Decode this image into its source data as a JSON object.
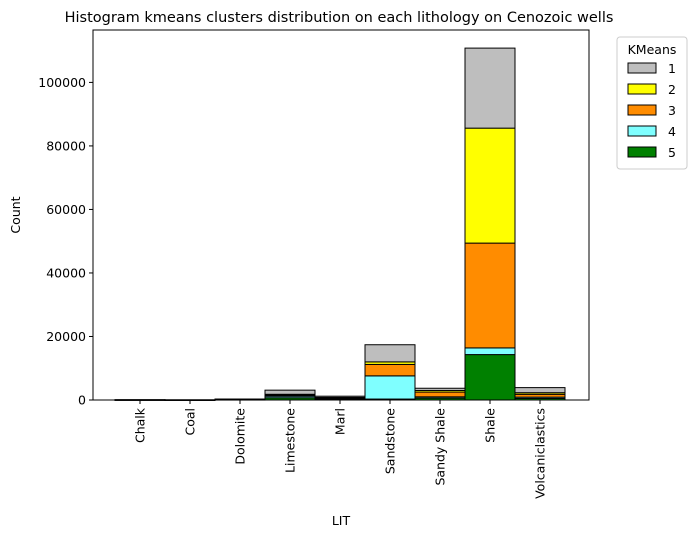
{
  "chart_data": {
    "type": "bar",
    "stacked": true,
    "title": "Histogram kmeans clusters distribution on each lithology on Cenozoic wells",
    "xlabel": "LIT",
    "ylabel": "Count",
    "ylim": [
      0,
      116500
    ],
    "yticks": [
      0,
      20000,
      40000,
      60000,
      80000,
      100000
    ],
    "categories": [
      "Chalk",
      "Coal",
      "Dolomite",
      "Limestone",
      "Marl",
      "Sandstone",
      "Sandy Shale",
      "Shale",
      "Volcaniclastics"
    ],
    "series": [
      {
        "name": "5",
        "color": "#008000",
        "values": [
          10,
          5,
          80,
          700,
          300,
          300,
          600,
          14300,
          500
        ]
      },
      {
        "name": "4",
        "color": "#7fffff",
        "values": [
          10,
          5,
          70,
          500,
          200,
          7300,
          400,
          2100,
          400
        ]
      },
      {
        "name": "3",
        "color": "#ff8c00",
        "values": [
          20,
          10,
          50,
          300,
          200,
          3600,
          1500,
          33000,
          900
        ]
      },
      {
        "name": "2",
        "color": "#ffff00",
        "values": [
          10,
          5,
          50,
          300,
          100,
          800,
          500,
          36200,
          500
        ]
      },
      {
        "name": "1",
        "color": "#bebebe",
        "values": [
          20,
          10,
          50,
          1300,
          400,
          5400,
          700,
          25200,
          1600
        ]
      }
    ],
    "legend": {
      "title": "KMeans",
      "placement": "outside-right",
      "entries": [
        {
          "label": "1",
          "color": "#bebebe"
        },
        {
          "label": "2",
          "color": "#ffff00"
        },
        {
          "label": "3",
          "color": "#ff8c00"
        },
        {
          "label": "4",
          "color": "#7fffff"
        },
        {
          "label": "5",
          "color": "#008000"
        }
      ]
    },
    "grid": false
  }
}
